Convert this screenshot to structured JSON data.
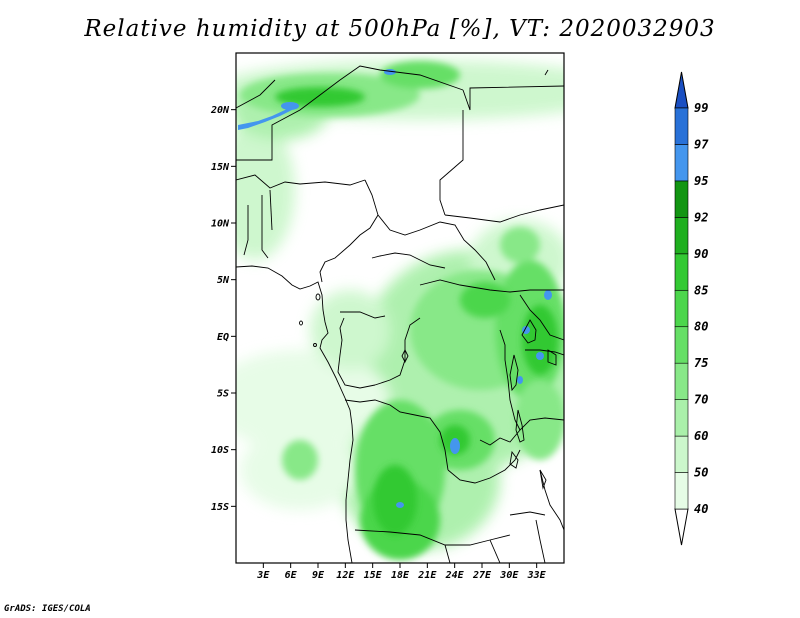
{
  "title": "Relative humidity at 500hPa [%], VT: 2020032903",
  "credit": "GrADS: IGES/COLA",
  "map": {
    "lon_range": [
      0,
      36
    ],
    "lat_range": [
      -20,
      25
    ],
    "lon_ticks": [
      {
        "value": 3,
        "label": "3E"
      },
      {
        "value": 6,
        "label": "6E"
      },
      {
        "value": 9,
        "label": "9E"
      },
      {
        "value": 12,
        "label": "12E"
      },
      {
        "value": 15,
        "label": "15E"
      },
      {
        "value": 18,
        "label": "18E"
      },
      {
        "value": 21,
        "label": "21E"
      },
      {
        "value": 24,
        "label": "24E"
      },
      {
        "value": 27,
        "label": "27E"
      },
      {
        "value": 30,
        "label": "30E"
      },
      {
        "value": 33,
        "label": "33E"
      }
    ],
    "lat_ticks": [
      {
        "value": 20,
        "label": "20N"
      },
      {
        "value": 15,
        "label": "15N"
      },
      {
        "value": 10,
        "label": "10N"
      },
      {
        "value": 5,
        "label": "5N"
      },
      {
        "value": 0,
        "label": "EQ"
      },
      {
        "value": -5,
        "label": "5S"
      },
      {
        "value": -10,
        "label": "10S"
      },
      {
        "value": -15,
        "label": "15S"
      }
    ]
  },
  "colorbar": {
    "levels": [
      "40",
      "50",
      "60",
      "70",
      "75",
      "80",
      "85",
      "90",
      "92",
      "95",
      "97",
      "99"
    ],
    "colors": [
      "#ffffff",
      "#e6fce6",
      "#ccf7cc",
      "#aaf0aa",
      "#88e888",
      "#66df66",
      "#4cd64c",
      "#33c933",
      "#1faf1f",
      "#129512",
      "#4496ee",
      "#2871d8",
      "#1a4fc2"
    ]
  }
}
